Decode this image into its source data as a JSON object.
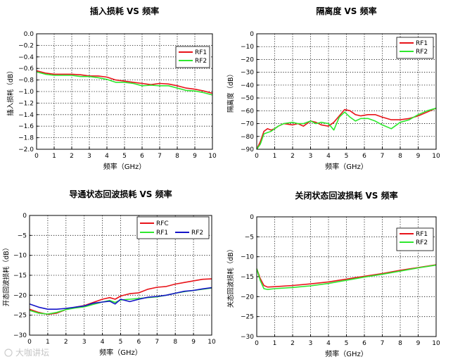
{
  "chart_data": [
    {
      "type": "line",
      "title": "插入损耗 VS 频率",
      "xlabel": "频率（GHz）",
      "ylabel": "插入损耗（dB）",
      "xlim": [
        0,
        10
      ],
      "ylim": [
        -2.0,
        0.0
      ],
      "xticks": [
        0,
        1,
        2,
        3,
        4,
        5,
        6,
        7,
        8,
        9,
        10
      ],
      "yticks": [
        0.0,
        -0.2,
        -0.4,
        -0.6,
        -0.8,
        -1.0,
        -1.2,
        -1.4,
        -1.6,
        -1.8,
        -2.0
      ],
      "ytick_labels": [
        "0.0",
        "−0.2",
        "−0.4",
        "−0.6",
        "−0.8",
        "−1.0",
        "−1.2",
        "−1.4",
        "−1.6",
        "−1.8",
        "−2.0"
      ],
      "grid": true,
      "legend_position": "top-right",
      "series": [
        {
          "name": "RF1",
          "color": "#e8141a",
          "x": [
            0,
            0.5,
            1,
            1.5,
            2,
            2.5,
            3,
            3.5,
            4,
            4.5,
            5,
            5.5,
            6,
            6.5,
            7,
            7.5,
            8,
            8.5,
            9,
            9.5,
            10
          ],
          "y": [
            -0.64,
            -0.68,
            -0.7,
            -0.7,
            -0.7,
            -0.71,
            -0.73,
            -0.73,
            -0.75,
            -0.8,
            -0.82,
            -0.84,
            -0.86,
            -0.88,
            -0.86,
            -0.87,
            -0.9,
            -0.94,
            -0.96,
            -0.99,
            -1.03
          ]
        },
        {
          "name": "RF2",
          "color": "#2ee82e",
          "x": [
            0,
            0.5,
            1,
            1.5,
            2,
            2.5,
            3,
            3.5,
            4,
            4.5,
            5,
            5.5,
            6,
            6.5,
            7,
            7.5,
            8,
            8.5,
            9,
            9.5,
            10
          ],
          "y": [
            -0.66,
            -0.7,
            -0.72,
            -0.72,
            -0.72,
            -0.74,
            -0.74,
            -0.76,
            -0.79,
            -0.84,
            -0.84,
            -0.86,
            -0.9,
            -0.89,
            -0.9,
            -0.9,
            -0.94,
            -0.98,
            -0.99,
            -1.02,
            -1.06
          ]
        }
      ]
    },
    {
      "type": "line",
      "title": "隔离度 VS 频率",
      "xlabel": "频率（GHz）",
      "ylabel": "隔离度（dB）",
      "xlim": [
        0,
        10
      ],
      "ylim": [
        -90,
        0
      ],
      "xticks": [
        0,
        1,
        2,
        3,
        4,
        5,
        6,
        7,
        8,
        9,
        10
      ],
      "yticks": [
        0,
        -10,
        -20,
        -30,
        -40,
        -50,
        -60,
        -70,
        -80,
        -90
      ],
      "ytick_labels": [
        "0",
        "−10",
        "−20",
        "−30",
        "−40",
        "−50",
        "−60",
        "−70",
        "−80",
        "−90"
      ],
      "grid": true,
      "legend_position": "top-right",
      "series": [
        {
          "name": "RF1",
          "color": "#e8141a",
          "x": [
            0,
            0.2,
            0.4,
            0.6,
            0.8,
            1.0,
            1.2,
            1.5,
            2.0,
            2.3,
            2.6,
            3.0,
            3.3,
            3.6,
            4.0,
            4.3,
            4.6,
            4.9,
            5.2,
            5.5,
            5.8,
            6.2,
            6.6,
            7.0,
            7.5,
            8.0,
            8.5,
            9.0,
            9.5,
            10.0
          ],
          "y": [
            -90,
            -84,
            -76,
            -74,
            -75,
            -74,
            -72,
            -70,
            -71,
            -70,
            -72,
            -68,
            -69,
            -71,
            -72,
            -69,
            -64,
            -59,
            -60,
            -63,
            -64,
            -63,
            -63,
            -65,
            -67,
            -67,
            -66,
            -64,
            -61,
            -58
          ]
        },
        {
          "name": "RF2",
          "color": "#2ee82e",
          "x": [
            0,
            0.2,
            0.4,
            0.6,
            0.8,
            1.0,
            1.2,
            1.5,
            2.0,
            2.3,
            2.6,
            3.0,
            3.3,
            3.6,
            4.0,
            4.3,
            4.6,
            4.9,
            5.2,
            5.5,
            5.8,
            6.2,
            6.6,
            7.0,
            7.5,
            8.0,
            8.5,
            9.0,
            9.5,
            10.0
          ],
          "y": [
            -90,
            -86,
            -78,
            -77,
            -76,
            -74,
            -72,
            -70,
            -69,
            -70,
            -70,
            -68,
            -70,
            -69,
            -70,
            -75,
            -65,
            -61,
            -65,
            -68,
            -66,
            -66,
            -68,
            -71,
            -74,
            -69,
            -67,
            -63,
            -60,
            -58
          ]
        }
      ]
    },
    {
      "type": "line",
      "title": "导通状态回波损耗 VS 频率",
      "xlabel": "频率（GHz）",
      "ylabel": "开态回波损耗（dB）",
      "xlim": [
        0,
        10
      ],
      "ylim": [
        -30,
        0
      ],
      "xticks": [
        0,
        1,
        2,
        3,
        4,
        5,
        6,
        7,
        8,
        9,
        10
      ],
      "yticks": [
        0,
        -5,
        -10,
        -15,
        -20,
        -25,
        -30
      ],
      "ytick_labels": [
        "0",
        "−5",
        "−10",
        "−15",
        "−20",
        "−25",
        "−30"
      ],
      "grid": true,
      "legend_position": "top-right",
      "series": [
        {
          "name": "RFC",
          "color": "#e8141a",
          "x": [
            0,
            0.5,
            1,
            1.5,
            2,
            2.5,
            3,
            3.5,
            4,
            4.4,
            4.7,
            5,
            5.5,
            6,
            6.5,
            7,
            7.5,
            8,
            8.5,
            9,
            9.5,
            10
          ],
          "y": [
            -23.5,
            -24.3,
            -24.8,
            -24.5,
            -23.6,
            -23.0,
            -22.6,
            -21.8,
            -21.0,
            -20.6,
            -21.0,
            -20.2,
            -19.6,
            -19.4,
            -18.5,
            -18.0,
            -17.8,
            -17.2,
            -16.8,
            -16.4,
            -16.0,
            -15.9
          ]
        },
        {
          "name": "RF1",
          "color": "#2ee82e",
          "x": [
            0,
            0.5,
            1,
            1.5,
            2,
            2.5,
            3,
            3.5,
            4,
            4.4,
            4.7,
            5,
            5.5,
            6,
            6.5,
            7,
            7.5,
            8,
            8.5,
            9,
            9.5,
            10
          ],
          "y": [
            -23.8,
            -24.5,
            -24.7,
            -24.3,
            -23.6,
            -23.2,
            -22.9,
            -22.3,
            -21.7,
            -21.3,
            -21.8,
            -21.2,
            -21.0,
            -20.8,
            -20.6,
            -20.4,
            -20.0,
            -19.5,
            -19.1,
            -18.8,
            -18.5,
            -18.2
          ]
        },
        {
          "name": "RF2",
          "color": "#1414c8",
          "x": [
            0,
            0.5,
            1,
            1.5,
            2,
            2.5,
            3,
            3.5,
            4,
            4.4,
            4.7,
            5,
            5.5,
            6,
            6.5,
            7,
            7.5,
            8,
            8.5,
            9,
            9.5,
            10
          ],
          "y": [
            -22.2,
            -23.0,
            -23.5,
            -23.5,
            -23.3,
            -23.0,
            -22.7,
            -22.0,
            -21.7,
            -21.5,
            -22.2,
            -21.0,
            -21.6,
            -21.0,
            -20.5,
            -20.3,
            -20.0,
            -19.5,
            -19.0,
            -18.8,
            -18.4,
            -18.1
          ]
        }
      ]
    },
    {
      "type": "line",
      "title": "关闭状态回波损耗 VS 频率",
      "xlabel": "频率（GHz）",
      "ylabel": "关态回波损耗（dB）",
      "xlim": [
        0,
        10
      ],
      "ylim": [
        -30,
        0
      ],
      "xticks": [
        0,
        1,
        2,
        3,
        4,
        5,
        6,
        7,
        8,
        9,
        10
      ],
      "yticks": [
        0,
        -5,
        -10,
        -15,
        -20,
        -25,
        -30
      ],
      "ytick_labels": [
        "0",
        "−5",
        "−10",
        "−15",
        "−20",
        "−25",
        "−30"
      ],
      "grid": true,
      "legend_position": "top-right",
      "series": [
        {
          "name": "RF1",
          "color": "#e8141a",
          "x": [
            0,
            0.2,
            0.4,
            0.6,
            1,
            2,
            3,
            4,
            5,
            6,
            7,
            8,
            9,
            10
          ],
          "y": [
            -13.0,
            -15.5,
            -17.2,
            -17.6,
            -17.5,
            -17.2,
            -16.8,
            -16.3,
            -15.6,
            -14.9,
            -14.2,
            -13.4,
            -12.7,
            -12.0
          ]
        },
        {
          "name": "RF2",
          "color": "#2ee82e",
          "x": [
            0,
            0.2,
            0.4,
            0.6,
            1,
            2,
            3,
            4,
            5,
            6,
            7,
            8,
            9,
            10
          ],
          "y": [
            -13.0,
            -16.0,
            -18.0,
            -18.2,
            -18.0,
            -17.7,
            -17.3,
            -16.7,
            -15.9,
            -15.1,
            -14.4,
            -13.6,
            -12.8,
            -12.1
          ]
        }
      ]
    }
  ],
  "watermark": {
    "text": "大咖讲坛"
  }
}
